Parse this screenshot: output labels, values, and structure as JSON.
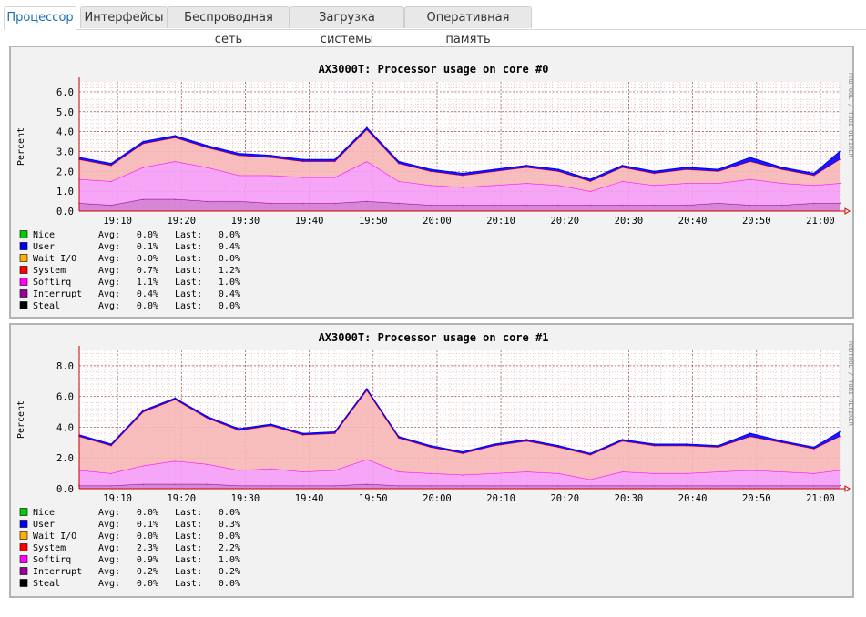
{
  "tabs": [
    {
      "label": "Процессор",
      "active": true
    },
    {
      "label": "Интерфейсы",
      "active": false
    },
    {
      "label": "Беспроводная сеть",
      "active": false
    },
    {
      "label": "Загрузка системы",
      "active": false
    },
    {
      "label": "Оперативная память",
      "active": false
    }
  ],
  "watermark": "RRDTOOL / TOBI OETIKER",
  "colors": {
    "Nice": "#00cc00",
    "User": "#0000ff",
    "Wait I/O": "#ffb000",
    "System": "#ff0000",
    "Softirq": "#ff00ff",
    "Interrupt": "#990099",
    "Steal": "#000000",
    "system_fill": "#f7b6b6",
    "softirq_fill": "#f59cf5",
    "interrupt_fill": "#d27ad2",
    "grid_major": "#a05050",
    "grid_minor": "#e0b0b0",
    "axis": "#cc0000"
  },
  "labels": {
    "avg": "Avg:",
    "last": "Last:"
  },
  "chart_data": [
    {
      "type": "area",
      "title": "AX3000T: Processor usage on core #0",
      "ylabel": "Percent",
      "ylim": [
        0,
        6.5
      ],
      "y_ticks": [
        "0.0",
        "1.0",
        "2.0",
        "3.0",
        "4.0",
        "5.0",
        "6.0"
      ],
      "x_ticks": [
        "19:10",
        "19:20",
        "19:30",
        "19:40",
        "19:50",
        "20:00",
        "20:10",
        "20:20",
        "20:30",
        "20:40",
        "20:50",
        "21:00"
      ],
      "x_range": [
        "19:04",
        "21:03"
      ],
      "grid": true,
      "x": [
        "19:04",
        "19:09",
        "19:14",
        "19:19",
        "19:24",
        "19:29",
        "19:34",
        "19:39",
        "19:44",
        "19:49",
        "19:54",
        "19:59",
        "20:04",
        "20:09",
        "20:14",
        "20:19",
        "20:24",
        "20:29",
        "20:34",
        "20:39",
        "20:44",
        "20:49",
        "20:54",
        "20:59",
        "21:03"
      ],
      "series": [
        {
          "name": "Interrupt",
          "values": [
            0.4,
            0.3,
            0.6,
            0.6,
            0.5,
            0.5,
            0.4,
            0.4,
            0.4,
            0.5,
            0.4,
            0.3,
            0.3,
            0.3,
            0.3,
            0.3,
            0.3,
            0.3,
            0.3,
            0.3,
            0.4,
            0.3,
            0.3,
            0.4,
            0.4
          ]
        },
        {
          "name": "Softirq",
          "values": [
            1.2,
            1.2,
            1.6,
            1.9,
            1.7,
            1.3,
            1.4,
            1.3,
            1.3,
            2.0,
            1.1,
            1.0,
            0.9,
            1.0,
            1.1,
            1.0,
            0.7,
            1.2,
            1.0,
            1.1,
            1.0,
            1.3,
            1.1,
            0.9,
            1.0
          ]
        },
        {
          "name": "System",
          "values": [
            1.0,
            0.8,
            1.2,
            1.2,
            1.0,
            1.0,
            0.9,
            0.8,
            0.8,
            1.6,
            0.9,
            0.7,
            0.6,
            0.7,
            0.8,
            0.7,
            0.5,
            0.7,
            0.6,
            0.7,
            0.6,
            0.9,
            0.7,
            0.5,
            1.2
          ]
        },
        {
          "name": "User",
          "values": [
            0.1,
            0.1,
            0.1,
            0.1,
            0.1,
            0.1,
            0.1,
            0.1,
            0.1,
            0.1,
            0.1,
            0.1,
            0.1,
            0.1,
            0.1,
            0.1,
            0.1,
            0.1,
            0.1,
            0.1,
            0.1,
            0.2,
            0.1,
            0.1,
            0.4
          ]
        },
        {
          "name": "Nice",
          "values": [
            0,
            0,
            0,
            0,
            0,
            0,
            0,
            0,
            0,
            0,
            0,
            0,
            0,
            0,
            0,
            0,
            0,
            0,
            0,
            0,
            0,
            0,
            0,
            0,
            0
          ]
        },
        {
          "name": "Wait I/O",
          "values": [
            0,
            0,
            0,
            0,
            0,
            0,
            0,
            0,
            0,
            0,
            0,
            0,
            0,
            0,
            0,
            0,
            0,
            0,
            0,
            0,
            0,
            0,
            0,
            0,
            0
          ]
        },
        {
          "name": "Steal",
          "values": [
            0,
            0,
            0,
            0,
            0,
            0,
            0,
            0,
            0,
            0,
            0,
            0,
            0,
            0,
            0,
            0,
            0,
            0,
            0,
            0,
            0,
            0,
            0,
            0,
            0
          ]
        }
      ],
      "legend": [
        {
          "name": "Nice",
          "avg": "0.0%",
          "last": "0.0%"
        },
        {
          "name": "User",
          "avg": "0.1%",
          "last": "0.4%"
        },
        {
          "name": "Wait I/O",
          "avg": "0.0%",
          "last": "0.0%"
        },
        {
          "name": "System",
          "avg": "0.7%",
          "last": "1.2%"
        },
        {
          "name": "Softirq",
          "avg": "1.1%",
          "last": "1.0%"
        },
        {
          "name": "Interrupt",
          "avg": "0.4%",
          "last": "0.4%"
        },
        {
          "name": "Steal",
          "avg": "0.0%",
          "last": "0.0%"
        }
      ]
    },
    {
      "type": "area",
      "title": "AX3000T: Processor usage on core #1",
      "ylabel": "Percent",
      "ylim": [
        0,
        9
      ],
      "y_ticks": [
        "0.0",
        "2.0",
        "4.0",
        "6.0",
        "8.0"
      ],
      "x_ticks": [
        "19:10",
        "19:20",
        "19:30",
        "19:40",
        "19:50",
        "20:00",
        "20:10",
        "20:20",
        "20:30",
        "20:40",
        "20:50",
        "21:00"
      ],
      "x_range": [
        "19:04",
        "21:03"
      ],
      "grid": true,
      "x": [
        "19:04",
        "19:09",
        "19:14",
        "19:19",
        "19:24",
        "19:29",
        "19:34",
        "19:39",
        "19:44",
        "19:49",
        "19:54",
        "19:59",
        "20:04",
        "20:09",
        "20:14",
        "20:19",
        "20:24",
        "20:29",
        "20:34",
        "20:39",
        "20:44",
        "20:49",
        "20:54",
        "20:59",
        "21:03"
      ],
      "series": [
        {
          "name": "Interrupt",
          "values": [
            0.2,
            0.2,
            0.3,
            0.3,
            0.3,
            0.2,
            0.2,
            0.2,
            0.2,
            0.3,
            0.2,
            0.2,
            0.2,
            0.2,
            0.2,
            0.2,
            0.2,
            0.2,
            0.2,
            0.2,
            0.2,
            0.2,
            0.2,
            0.2,
            0.2
          ]
        },
        {
          "name": "Softirq",
          "values": [
            1.0,
            0.8,
            1.2,
            1.5,
            1.3,
            1.0,
            1.1,
            0.9,
            1.0,
            1.6,
            0.9,
            0.8,
            0.7,
            0.8,
            0.9,
            0.8,
            0.4,
            0.9,
            0.8,
            0.8,
            0.9,
            1.0,
            0.9,
            0.8,
            1.0
          ]
        },
        {
          "name": "System",
          "values": [
            2.2,
            1.8,
            3.5,
            4.0,
            3.0,
            2.6,
            2.8,
            2.4,
            2.4,
            4.5,
            2.2,
            1.7,
            1.4,
            1.8,
            2.0,
            1.7,
            1.6,
            2.0,
            1.8,
            1.8,
            1.6,
            2.2,
            1.9,
            1.6,
            2.2
          ]
        },
        {
          "name": "User",
          "values": [
            0.1,
            0.1,
            0.1,
            0.1,
            0.1,
            0.1,
            0.1,
            0.1,
            0.1,
            0.1,
            0.1,
            0.1,
            0.1,
            0.1,
            0.1,
            0.1,
            0.1,
            0.1,
            0.1,
            0.1,
            0.1,
            0.2,
            0.1,
            0.1,
            0.3
          ]
        },
        {
          "name": "Nice",
          "values": [
            0,
            0,
            0,
            0,
            0,
            0,
            0,
            0,
            0,
            0,
            0,
            0,
            0,
            0,
            0,
            0,
            0,
            0,
            0,
            0,
            0,
            0,
            0,
            0,
            0
          ]
        },
        {
          "name": "Wait I/O",
          "values": [
            0,
            0,
            0,
            0,
            0,
            0,
            0,
            0,
            0,
            0,
            0,
            0,
            0,
            0,
            0,
            0,
            0,
            0,
            0,
            0,
            0,
            0,
            0,
            0,
            0
          ]
        },
        {
          "name": "Steal",
          "values": [
            0,
            0,
            0,
            0,
            0,
            0,
            0,
            0,
            0,
            0,
            0,
            0,
            0,
            0,
            0,
            0,
            0,
            0,
            0,
            0,
            0,
            0,
            0,
            0,
            0
          ]
        }
      ],
      "legend": [
        {
          "name": "Nice",
          "avg": "0.0%",
          "last": "0.0%"
        },
        {
          "name": "User",
          "avg": "0.1%",
          "last": "0.3%"
        },
        {
          "name": "Wait I/O",
          "avg": "0.0%",
          "last": "0.0%"
        },
        {
          "name": "System",
          "avg": "2.3%",
          "last": "2.2%"
        },
        {
          "name": "Softirq",
          "avg": "0.9%",
          "last": "1.0%"
        },
        {
          "name": "Interrupt",
          "avg": "0.2%",
          "last": "0.2%"
        },
        {
          "name": "Steal",
          "avg": "0.0%",
          "last": "0.0%"
        }
      ]
    }
  ]
}
